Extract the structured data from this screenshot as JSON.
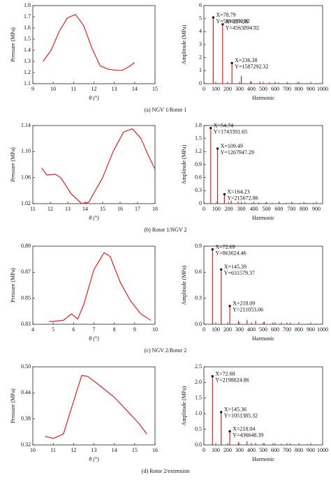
{
  "chart_data": [
    {
      "type": "line",
      "xlabel": "θ (°)",
      "ylabel": "Pressure (MPa)",
      "color": "#e02020",
      "x": [
        9.5,
        9.9,
        10.3,
        10.7,
        11.1,
        11.5,
        11.9,
        12.3,
        12.7,
        13.1,
        13.4,
        13.7,
        14.0
      ],
      "values": [
        1.3,
        1.4,
        1.57,
        1.69,
        1.72,
        1.62,
        1.42,
        1.26,
        1.23,
        1.22,
        1.22,
        1.25,
        1.29
      ],
      "xlim": [
        9,
        15
      ],
      "xticks": [
        9,
        10,
        11,
        12,
        13,
        14,
        15
      ],
      "ylim": [
        1.1,
        1.8
      ],
      "yticks": [
        1.1,
        1.2,
        1.3,
        1.4,
        1.5,
        1.6,
        1.7,
        1.8
      ]
    },
    {
      "type": "stem",
      "xlabel": "Harmonic",
      "ylabel": "Amplitude (MPa)",
      "color": "#e02020",
      "x": [
        78.79,
        157.58,
        236.38,
        315.17,
        393.96,
        472.75,
        551.54,
        630.33,
        709.12,
        787.91,
        866.7,
        945.49
      ],
      "values": [
        5.09,
        4.56,
        1.59,
        0.6,
        0.2,
        0.15,
        0.12,
        0.1,
        0.06,
        0.1,
        0.05,
        0.05
      ],
      "annotations": [
        [
          "X=78.79",
          "Y=5091804.92"
        ],
        [
          "X=157.58",
          "Y=4563894.92"
        ],
        [
          "X=236.38",
          "Y=1587292.32"
        ]
      ],
      "xlim": [
        0,
        1000
      ],
      "xticks": [
        0,
        100,
        200,
        300,
        400,
        500,
        600,
        700,
        800,
        900,
        1000
      ],
      "ylim": [
        0,
        6
      ],
      "yticks": [
        0,
        1,
        2,
        3,
        4,
        5,
        6
      ]
    },
    {
      "type": "line",
      "xlabel": "θ (°)",
      "ylabel": "Pressure (MPa)",
      "color": "#e02020",
      "x": [
        11.5,
        11.8,
        12.3,
        12.6,
        13.2,
        13.8,
        14.2,
        15.0,
        15.6,
        16.2,
        16.7,
        17.2,
        17.6,
        18.0
      ],
      "values": [
        1.075,
        1.064,
        1.065,
        1.06,
        1.035,
        1.02,
        1.022,
        1.06,
        1.1,
        1.13,
        1.135,
        1.12,
        1.095,
        1.073
      ],
      "xlim": [
        11,
        18
      ],
      "xticks": [
        11,
        12,
        13,
        14,
        15,
        16,
        17,
        18
      ],
      "ylim": [
        1.02,
        1.14
      ],
      "yticks": [
        1.02,
        1.06,
        {
          "value": 1.1,
          "label": "1.10"
        },
        1.14
      ]
    },
    {
      "type": "stem",
      "xlabel": "Harmonic",
      "ylabel": "Amplitude (MPa)",
      "color": "#e02020",
      "x": [
        54.74,
        109.49,
        164.23,
        218.97,
        273.71,
        328.46,
        383.2,
        437.94,
        492.69,
        547.43,
        602.17,
        656.92,
        711.66,
        766.4,
        821.14,
        875.89
      ],
      "values": [
        1.743,
        1.268,
        0.216,
        0.07,
        0.05,
        0.04,
        0.02,
        0.03,
        0.02,
        0.02,
        0.03,
        0.02,
        0.02,
        0.02,
        0.02,
        0.02
      ],
      "annotations": [
        [
          "X=54.74",
          "Y=1743391.65"
        ],
        [
          "X=109.49",
          "Y=1267947.29"
        ],
        [
          "X=164.23",
          "Y=215672.86"
        ]
      ],
      "xlim": [
        0,
        950
      ],
      "xticks": [
        0,
        100,
        200,
        300,
        400,
        500,
        600,
        700,
        800,
        900
      ],
      "ylim": [
        0,
        1.8
      ],
      "yticks": [
        0,
        0.3,
        0.6,
        0.9,
        1.2,
        1.5,
        1.8
      ]
    },
    {
      "type": "line",
      "xlabel": "θ (°)",
      "ylabel": "Pressure (MPa)",
      "color": "#e02020",
      "x": [
        4.8,
        5.5,
        5.9,
        6.2,
        6.5,
        7.0,
        7.5,
        7.8,
        8.3,
        8.8,
        9.3,
        9.8
      ],
      "values": [
        0.832,
        0.833,
        0.838,
        0.834,
        0.845,
        0.872,
        0.885,
        0.882,
        0.862,
        0.848,
        0.838,
        0.833
      ],
      "xlim": [
        4,
        10
      ],
      "xticks": [
        4,
        5,
        6,
        7,
        8,
        9,
        10
      ],
      "ylim": [
        0.83,
        0.89
      ],
      "yticks": [
        0.83,
        0.85,
        0.87,
        0.89
      ]
    },
    {
      "type": "stem",
      "xlabel": "Harmonic",
      "ylabel": "Amplitude (MPa)",
      "color": "#e02020",
      "x": [
        72.69,
        145.39,
        218.09,
        290.78,
        363.48,
        436.17,
        508.87,
        581.56,
        654.26,
        726.95,
        799.65,
        872.34,
        945.04
      ],
      "values": [
        0.863,
        0.632,
        0.211,
        0.04,
        0.05,
        0.04,
        0.03,
        0.02,
        0.02,
        0.02,
        0.02,
        0.01,
        0.01
      ],
      "annotations": [
        [
          "X=72.69",
          "Y=863024.46"
        ],
        [
          "X=145.39",
          "Y=631579.37"
        ],
        [
          "X=218.09",
          "Y=211053.06"
        ]
      ],
      "xlim": [
        0,
        1000
      ],
      "xticks": [
        0,
        100,
        200,
        300,
        400,
        500,
        600,
        700,
        800,
        900,
        1000
      ],
      "ylim": [
        0,
        0.9
      ],
      "yticks": [
        {
          "value": 0,
          "label": "0.0"
        },
        0.3,
        0.6,
        0.9
      ]
    },
    {
      "type": "line",
      "xlabel": "θ (°)",
      "ylabel": "Pressure (MPa)",
      "color": "#e02020",
      "x": [
        10.6,
        11.0,
        11.5,
        12.0,
        12.4,
        12.7,
        13.2,
        14.0,
        14.6,
        15.2,
        15.6
      ],
      "values": [
        0.34,
        0.335,
        0.345,
        0.42,
        0.48,
        0.478,
        0.46,
        0.43,
        0.4,
        0.37,
        0.345
      ],
      "xlim": [
        10,
        16
      ],
      "xticks": [
        10,
        11,
        12,
        13,
        14,
        15,
        16
      ],
      "ylim": [
        0.32,
        0.5
      ],
      "yticks": [
        0.32,
        0.38,
        0.44,
        {
          "value": 0.5,
          "label": "0.50"
        }
      ]
    },
    {
      "type": "stem",
      "xlabel": "Harmonic",
      "ylabel": "Amplitude (MPa)",
      "color": "#e02020",
      "x": [
        72.68,
        145.36,
        218.04,
        290.72,
        363.4,
        436.08,
        508.76,
        581.44,
        654.12,
        726.8,
        799.48,
        872.16,
        944.84
      ],
      "values": [
        2.198,
        1.051,
        0.437,
        0.1,
        0.12,
        0.06,
        0.05,
        0.05,
        0.04,
        0.05,
        0.03,
        0.03,
        0.02
      ],
      "annotations": [
        [
          "X=72.68",
          "Y=2198024.86"
        ],
        [
          "X=145.36",
          "Y=1051385.32"
        ],
        [
          "X=218.04",
          "Y=436648.39"
        ]
      ],
      "xlim": [
        0,
        1000
      ],
      "xticks": [
        0,
        100,
        200,
        300,
        400,
        500,
        600,
        700,
        800,
        900,
        1000
      ],
      "ylim": [
        0,
        2.5
      ],
      "yticks": [
        {
          "value": 0,
          "label": "0.0"
        },
        0.5,
        {
          "value": 1,
          "label": "1.0"
        },
        1.5,
        {
          "value": 2,
          "label": "2.0"
        },
        2.5
      ]
    }
  ],
  "captions": [
    "(a)  NGV 1/Rotor 1",
    "(b) Rotor 1/NGV 2",
    "(c) NGV 2/Rotor 2",
    "(d) Rotor 2/extension"
  ]
}
